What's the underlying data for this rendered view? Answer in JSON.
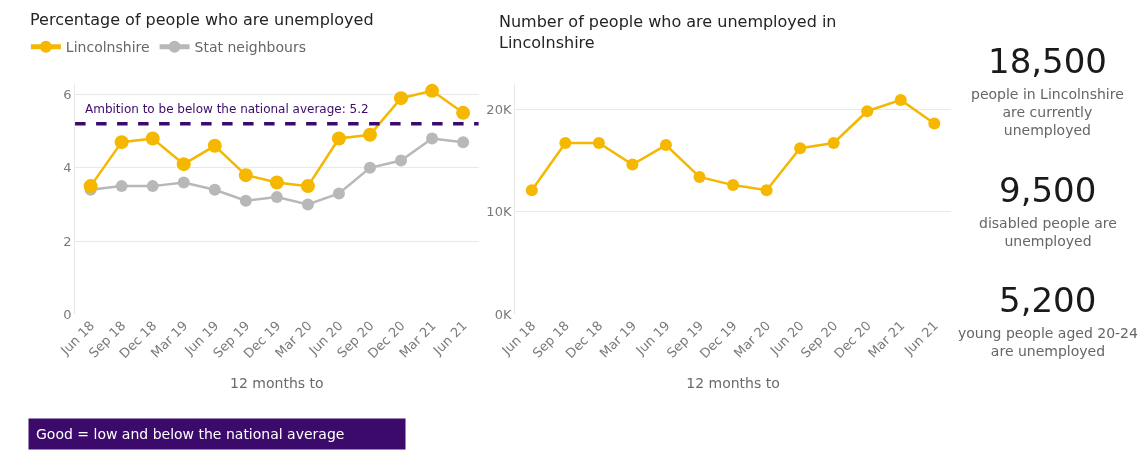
{
  "chart_data": [
    {
      "type": "line",
      "title": "Percentage of people who are unemployed",
      "xlabel": "12 months to",
      "categories": [
        "Jun 18",
        "Sep 18",
        "Dec 18",
        "Mar 19",
        "Jun 19",
        "Sep 19",
        "Dec 19",
        "Mar 20",
        "Jun 20",
        "Sep 20",
        "Dec 20",
        "Mar 21",
        "Jun 21"
      ],
      "series": [
        {
          "name": "Lincolnshire",
          "color": "#f5b700",
          "values": [
            3.5,
            4.7,
            4.8,
            4.1,
            4.6,
            3.8,
            3.6,
            3.5,
            4.8,
            4.9,
            5.9,
            6.1,
            5.5
          ]
        },
        {
          "name": "Stat neighbours",
          "color": "#b8b8b8",
          "values": [
            3.4,
            3.5,
            3.5,
            3.6,
            3.4,
            3.1,
            3.2,
            3.0,
            3.3,
            4.0,
            4.2,
            4.8,
            4.7
          ]
        }
      ],
      "ylim": [
        0,
        6.3
      ],
      "yticks": [
        0,
        2,
        4,
        6
      ],
      "grid": "y",
      "legend": "top left",
      "marker": "circle",
      "line_style": "solid",
      "ref_lines": [
        {
          "axis": "y",
          "value": 5.2,
          "label": "Ambition to be below the national average: 5.2",
          "color": "#3b0a6b",
          "line_style": "dashed"
        }
      ],
      "annotations": [
        "Good = low and below the national average"
      ]
    },
    {
      "type": "line",
      "title": "Number of people who are unemployed in Lincolnshire",
      "xlabel": "12 months to",
      "categories": [
        "Jun 18",
        "Sep 18",
        "Dec 18",
        "Mar 19",
        "Jun 19",
        "Sep 19",
        "Dec 19",
        "Mar 20",
        "Jun 20",
        "Sep 20",
        "Dec 20",
        "Mar 21",
        "Jun 21"
      ],
      "series": [
        {
          "color": "#f5b700",
          "values": [
            12100,
            16700,
            16700,
            14600,
            16500,
            13400,
            12600,
            12100,
            16200,
            16700,
            19800,
            20900,
            18600
          ]
        }
      ],
      "ylim": [
        0,
        22500
      ],
      "yticks": [
        {
          "value": 0,
          "label": "0K"
        },
        {
          "value": 10000,
          "label": "10K"
        },
        {
          "value": 20000,
          "label": "20K"
        }
      ],
      "grid": "y",
      "marker": "circle",
      "line_style": "solid"
    },
    {
      "type": "other",
      "annotations": [
        "18,500",
        "people in Lincolnshire are currently unemployed",
        "9,500",
        "disabled people are unemployed",
        "5,200",
        "young people aged 20-24 are unemployed"
      ]
    }
  ]
}
